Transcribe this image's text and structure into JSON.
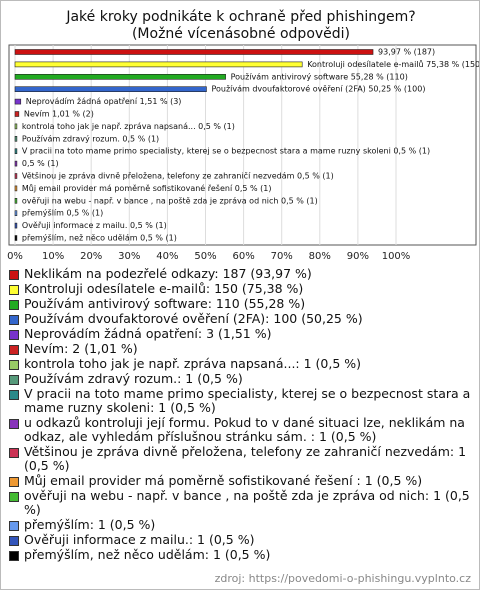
{
  "chart_data": {
    "type": "bar",
    "orientation": "horizontal",
    "title": "Jaké kroky podnikáte k ochraně před phishingem? (Možné vícenásobné odpovědi)",
    "categories": [
      "Neklikám na podezřelé odkazy: 187 (93,97 %)",
      "Kontroluji odesílatele e-mailů: 150 (75,38 %)",
      "Používám antivirový software: 110 (55,28 %)",
      "Používám dvoufaktorové ověření (2FA): 100 (50,25 %)",
      "Neprovádím žádná opatření: 3 (1,51 %)",
      "Nevím: 2 (1,01 %)",
      "kontrola toho jak je např. zpráva napsaná...: 1 (0,5 %)",
      "Používám zdravý rozum.: 1 (0,5 %)",
      "V pracii na toto mame primo specialisty, kterej se o bezpecnost stara a mame ruzny skoleni: 1 (0,5 %)",
      "u odkazů kontroluji její formu. Pokud to v dané situaci lze, neklikám na odkaz, ale vyhledám příslušnou stránku sám. : 1 (0,5 %)",
      "Většinou je zpráva divně přeložena, telefony ze zahraničí nezvedám: 1 (0,5 %)",
      "Můj email provider má poměrně sofistikované řešení : 1 (0,5 %)",
      "ověřuji na webu - např. v bance , na poště zda je zpráva od nich: 1 (0,5 %)",
      "přemýšlím: 1 (0,5 %)",
      "Ověřuji informace z mailu.: 1 (0,5 %)",
      "přemýšlím, než něco udělám: 1 (0,5 %)"
    ],
    "values": [
      93.97,
      75.38,
      55.28,
      50.25,
      1.51,
      1.01,
      0.5,
      0.5,
      0.5,
      0.5,
      0.5,
      0.5,
      0.5,
      0.5,
      0.5,
      0.5
    ],
    "value_labels": [
      "93,97 % (187)",
      "Kontroluji odesílatele e-mailů 75,38 % (150)",
      "Používám antivirový software 55,28 % (110)",
      "Používám dvoufaktorové ověření (2FA) 50,25 % (100)",
      "Neprovádím žádná opatření 1,51 % (3)",
      "Nevím 1,01 % (2)",
      "kontrola toho jak je např. zpráva napsaná... 0,5 % (1)",
      "Používám zdravý rozum. 0,5 % (1)",
      "V pracii na toto mame primo specialisty, kterej se o bezpecnost stara a mame ruzny skoleni 0,5 % (1)",
      "0,5 % (1)",
      "Většinou je zpráva divně přeložena, telefony ze zahraničí nezvedám 0,5 % (1)",
      "Můj email provider má poměrně sofistikované řešení 0,5 % (1)",
      "ověřuji na webu - např. v bance , na poště zda je zpráva od nich 0,5 % (1)",
      "přemýšlím 0,5 % (1)",
      "Ověřuji informace z mailu. 0,5 % (1)",
      "přemýšlím, než něco udělám 0,5 % (1)"
    ],
    "colors": [
      "#cc1111",
      "#ffff33",
      "#22aa22",
      "#3366cc",
      "#7733cc",
      "#cc2222",
      "#99cc66",
      "#55997a",
      "#2a8a8a",
      "#8833bb",
      "#cc3355",
      "#ee9933",
      "#44bb33",
      "#6699ee",
      "#3355bb",
      "#000000"
    ],
    "xlim": [
      0,
      100
    ],
    "xticks": [
      {
        "value": 0,
        "label": "0%"
      },
      {
        "value": 10,
        "label": "10%"
      },
      {
        "value": 20,
        "label": "20%"
      },
      {
        "value": 30,
        "label": "30%"
      },
      {
        "value": 40,
        "label": "40%"
      },
      {
        "value": 50,
        "label": "50%"
      },
      {
        "value": 60,
        "label": "60%"
      },
      {
        "value": 70,
        "label": "70%"
      },
      {
        "value": 80,
        "label": "80%"
      },
      {
        "value": 90,
        "label": "90%"
      },
      {
        "value": 100,
        "label": "100%"
      }
    ],
    "grid": true,
    "source": "zdroj: https://povedomi-o-phishingu.vyplnto.cz"
  }
}
